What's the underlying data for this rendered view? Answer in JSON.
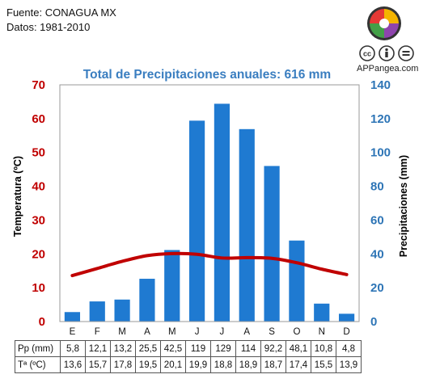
{
  "source": {
    "line1": "Fuente: CONAGUA MX",
    "line2": "Datos: 1981-2010"
  },
  "branding": {
    "site": "APPangea.com",
    "logo_colors": [
      "#e53935",
      "#f4b400",
      "#43a047",
      "#8e44ad"
    ],
    "license_icons": [
      "cc-icon",
      "attribution-icon",
      "no-derivatives-icon"
    ]
  },
  "colors": {
    "bars": "#1f7ad1",
    "temperature_line": "#c00000",
    "left_axis": "#c00000",
    "right_axis": "#2e75b6",
    "title": "#3a7ec0"
  },
  "chart_data": {
    "type": "bar+line",
    "title": "Total de Precipitaciones anuales: 616 mm",
    "categories": [
      "E",
      "F",
      "M",
      "A",
      "M",
      "J",
      "J",
      "A",
      "S",
      "O",
      "N",
      "D"
    ],
    "series": [
      {
        "axis": "right",
        "kind": "bar",
        "values": [
          5.8,
          12.1,
          13.2,
          25.5,
          42.5,
          119,
          129,
          114,
          92.2,
          48.1,
          10.8,
          4.8
        ]
      },
      {
        "axis": "left",
        "kind": "line",
        "values": [
          13.6,
          15.7,
          17.8,
          19.5,
          20.1,
          19.9,
          18.8,
          18.9,
          18.7,
          17.4,
          15.5,
          13.9
        ]
      }
    ],
    "left_axis": {
      "label": "Temperatura (ºC)",
      "min": 0,
      "max": 70,
      "ticks": [
        0,
        10,
        20,
        30,
        40,
        50,
        60,
        70
      ]
    },
    "right_axis": {
      "label": "Precipitaciones (mm)",
      "min": 0,
      "max": 140,
      "ticks": [
        0,
        20,
        40,
        60,
        80,
        100,
        120,
        140
      ]
    },
    "grid": false
  },
  "table": {
    "rows": [
      {
        "label": "Pp (mm)",
        "values": [
          "5,8",
          "12,1",
          "13,2",
          "25,5",
          "42,5",
          "119",
          "129",
          "114",
          "92,2",
          "48,1",
          "10,8",
          "4,8"
        ]
      },
      {
        "label": "Tª (ºC)",
        "values": [
          "13,6",
          "15,7",
          "17,8",
          "19,5",
          "20,1",
          "19,9",
          "18,8",
          "18,9",
          "18,7",
          "17,4",
          "15,5",
          "13,9"
        ]
      }
    ]
  }
}
